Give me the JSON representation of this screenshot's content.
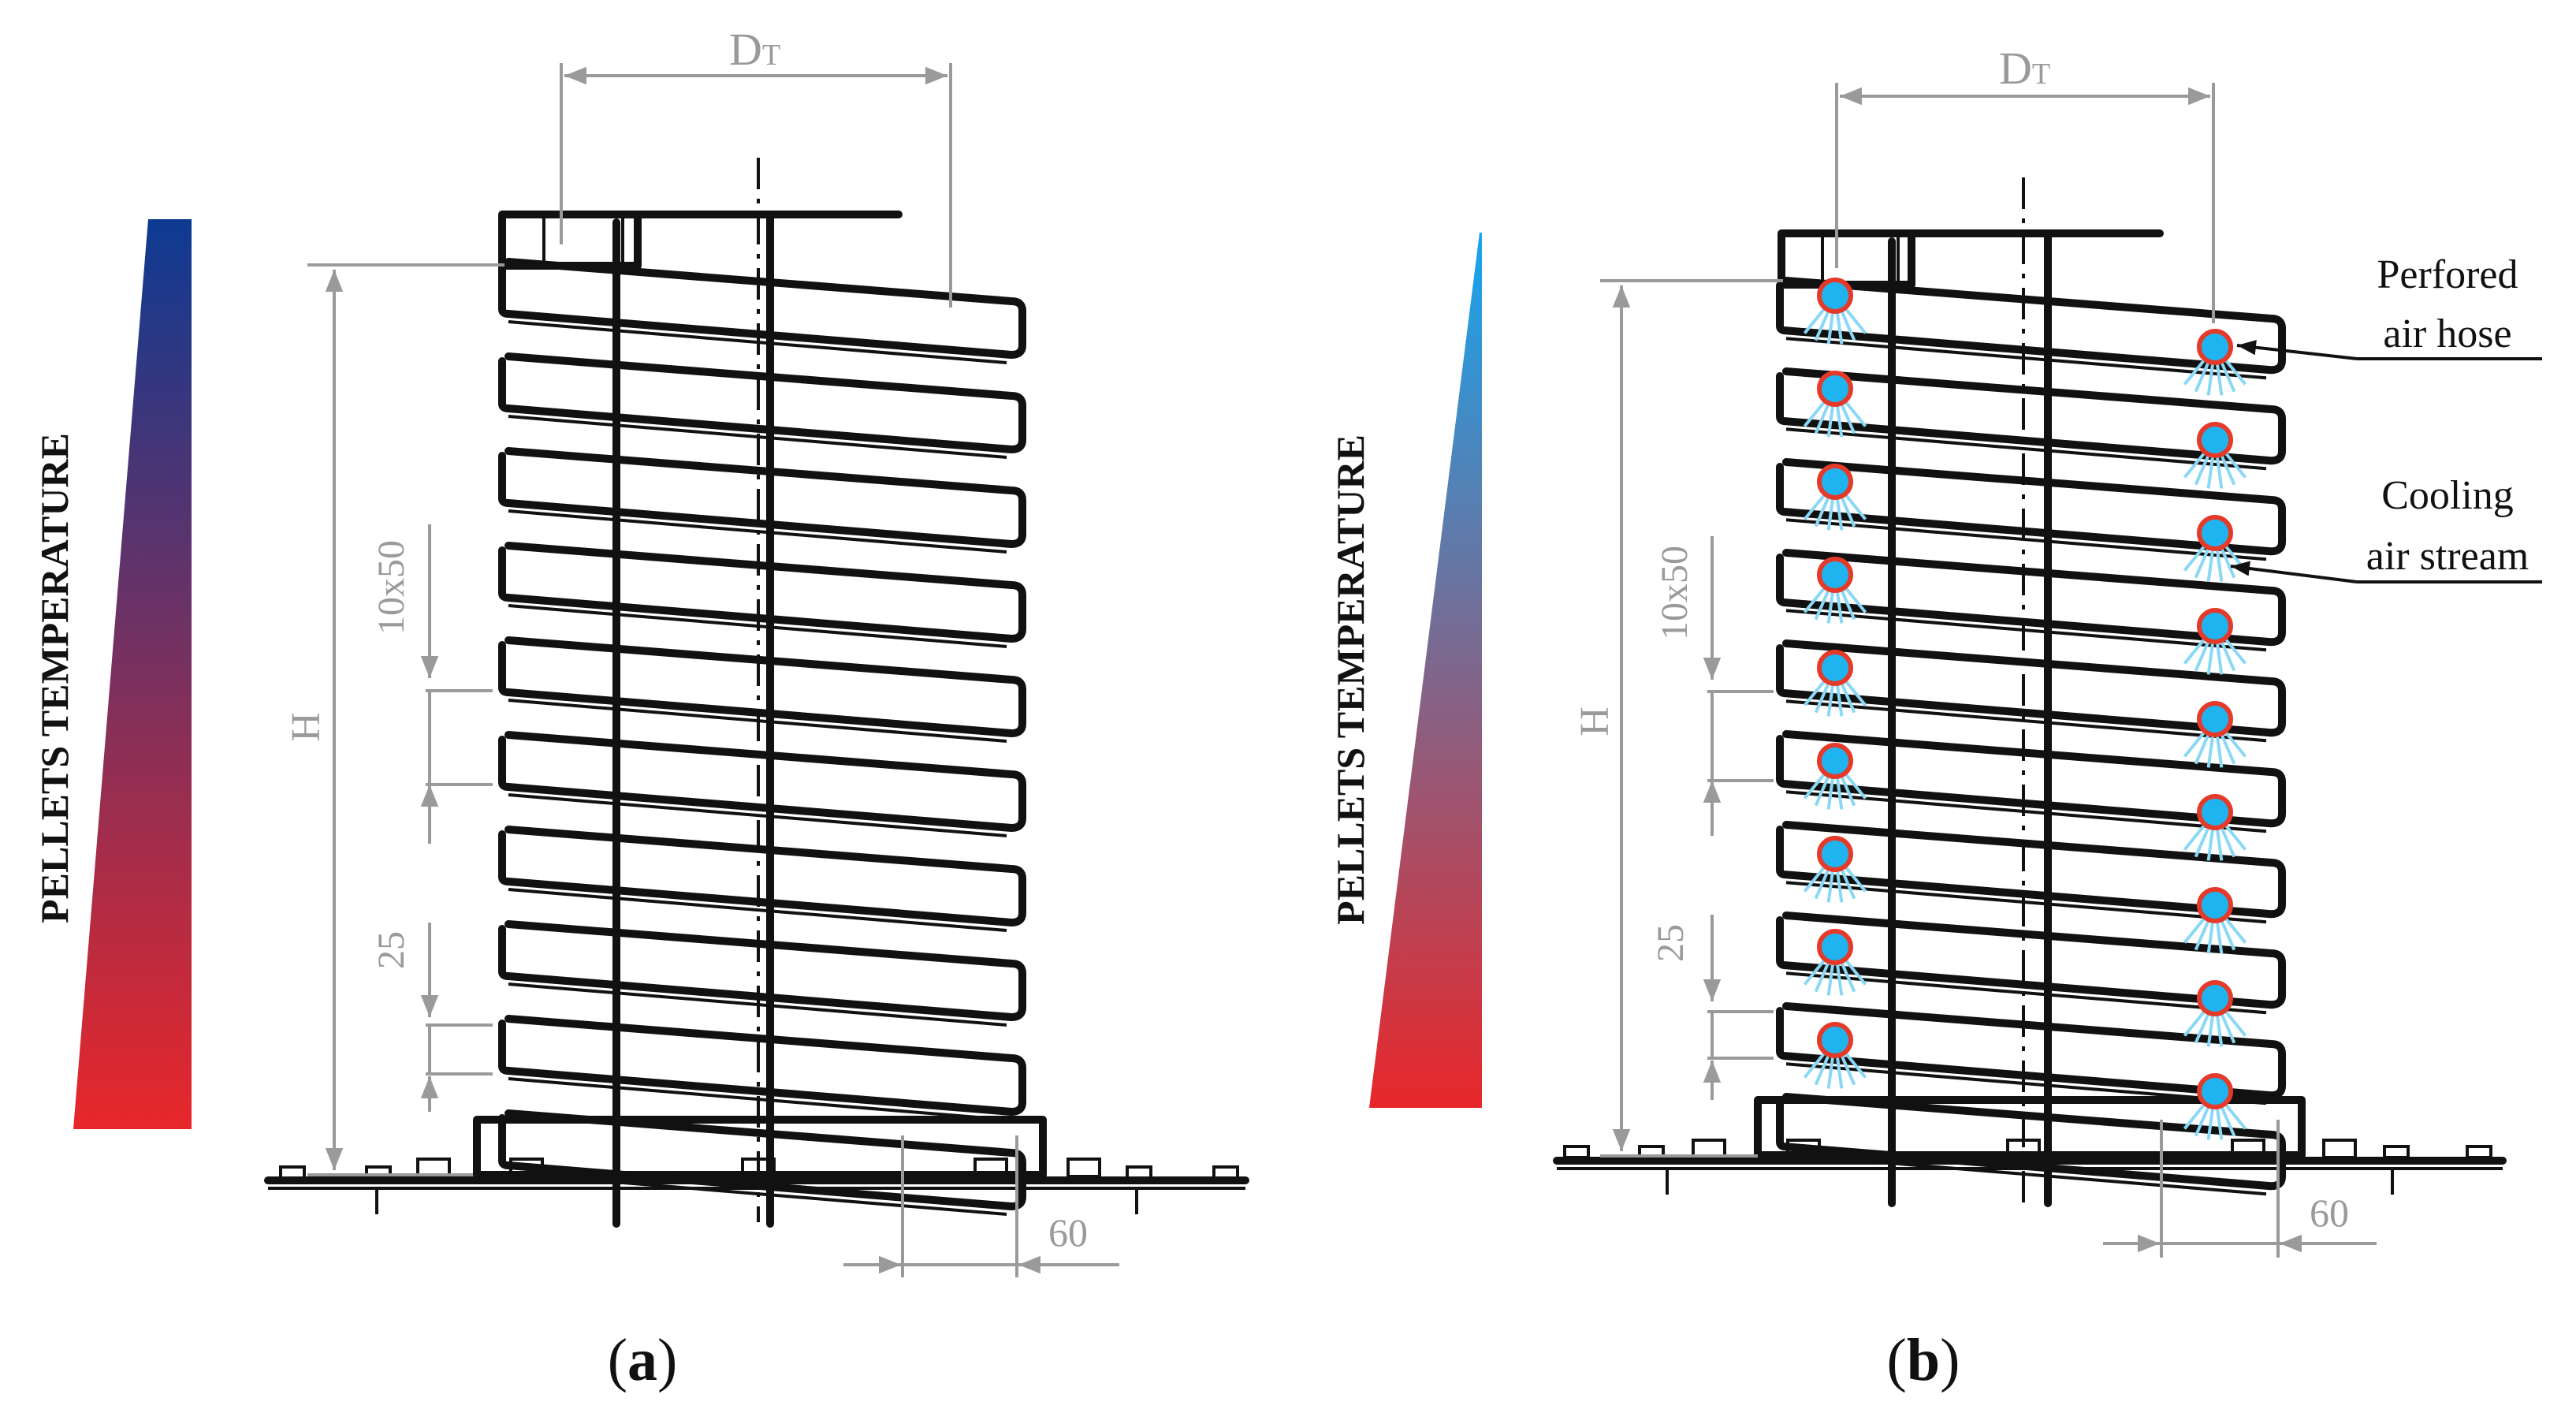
{
  "panels": [
    {
      "id": "a",
      "caption": {
        "open": "(",
        "letter": "a",
        "close": ")"
      },
      "axis_label": "PELLETS TEMPERATURE",
      "gradient": {
        "top": "#0d3a92",
        "bottom": "#e8272a"
      },
      "dims": {
        "diameter_main": "D",
        "diameter_sub": "T",
        "height": "H",
        "pitch": "10x50",
        "gap": "25",
        "width": "60"
      },
      "nozzles": false
    },
    {
      "id": "b",
      "caption": {
        "open": "(",
        "letter": "b",
        "close": ")"
      },
      "axis_label": "PELLETS TEMPERATURE",
      "gradient": {
        "top": "#16a6ee",
        "bottom": "#e8272a"
      },
      "dims": {
        "diameter_main": "D",
        "diameter_sub": "T",
        "height": "H",
        "pitch": "10x50",
        "gap": "25",
        "width": "60"
      },
      "nozzles": true,
      "annotations": {
        "hose": [
          "Perfored",
          "air hose"
        ],
        "stream": [
          "Cooling",
          "air stream"
        ]
      }
    }
  ],
  "colors": {
    "structure": "#111111",
    "dimension": "#9a9a9a",
    "nozzle_ring": "#e53a2a",
    "nozzle_core": "#1fb4ef",
    "spray": "#8ad8f5"
  }
}
